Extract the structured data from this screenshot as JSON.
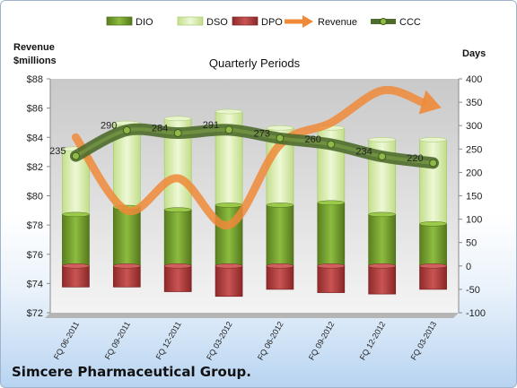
{
  "company": "Simcere Pharmaceutical Group.",
  "chart_data": {
    "type": "bar",
    "title": "Quarterly Periods",
    "categories": [
      "FQ 06-2011",
      "FQ 09-2011",
      "FQ 12-2011",
      "FQ 03-2012",
      "FQ 06-2012",
      "FQ 09-2012",
      "FQ 12-2012",
      "FQ 03-2013"
    ],
    "ylabel_left": [
      "Revenue",
      "$millions"
    ],
    "ylabel_right": "Days",
    "ylim_left": [
      72,
      88
    ],
    "yticks_left": [
      "$72",
      "$74",
      "$76",
      "$78",
      "$80",
      "$82",
      "$84",
      "$86",
      "$88"
    ],
    "ylim_right": [
      -100,
      400
    ],
    "yticks_right": [
      "-100",
      "-50",
      "0",
      "50",
      "100",
      "150",
      "200",
      "250",
      "300",
      "350",
      "400"
    ],
    "legend_position": "top",
    "grid": false,
    "series": [
      {
        "name": "DIO",
        "axis": "right",
        "kind": "stacked-bar",
        "color": "#6f9a2a",
        "values": [
          110,
          125,
          120,
          130,
          130,
          135,
          110,
          90
        ]
      },
      {
        "name": "DSO",
        "axis": "right",
        "kind": "stacked-bar",
        "color": "#d7ecaa",
        "values": [
          140,
          180,
          195,
          200,
          165,
          160,
          160,
          180
        ]
      },
      {
        "name": "DPO",
        "axis": "right",
        "kind": "negative-bar",
        "color": "#b23a3a",
        "values": [
          -45,
          -45,
          -55,
          -65,
          -50,
          -57,
          -60,
          -50
        ]
      },
      {
        "name": "Revenue",
        "axis": "left",
        "kind": "line",
        "color": "#ee8a38",
        "values": [
          84.0,
          79.0,
          81.2,
          78.0,
          83.5,
          85.0,
          87.2,
          86.4
        ]
      },
      {
        "name": "CCC",
        "axis": "right",
        "kind": "line",
        "color": "#4e6b2c",
        "values": [
          235,
          290,
          284,
          291,
          273,
          260,
          234,
          220
        ],
        "labels": [
          "235",
          "290",
          "284",
          "291",
          "273",
          "260",
          "234",
          "220"
        ]
      }
    ]
  }
}
